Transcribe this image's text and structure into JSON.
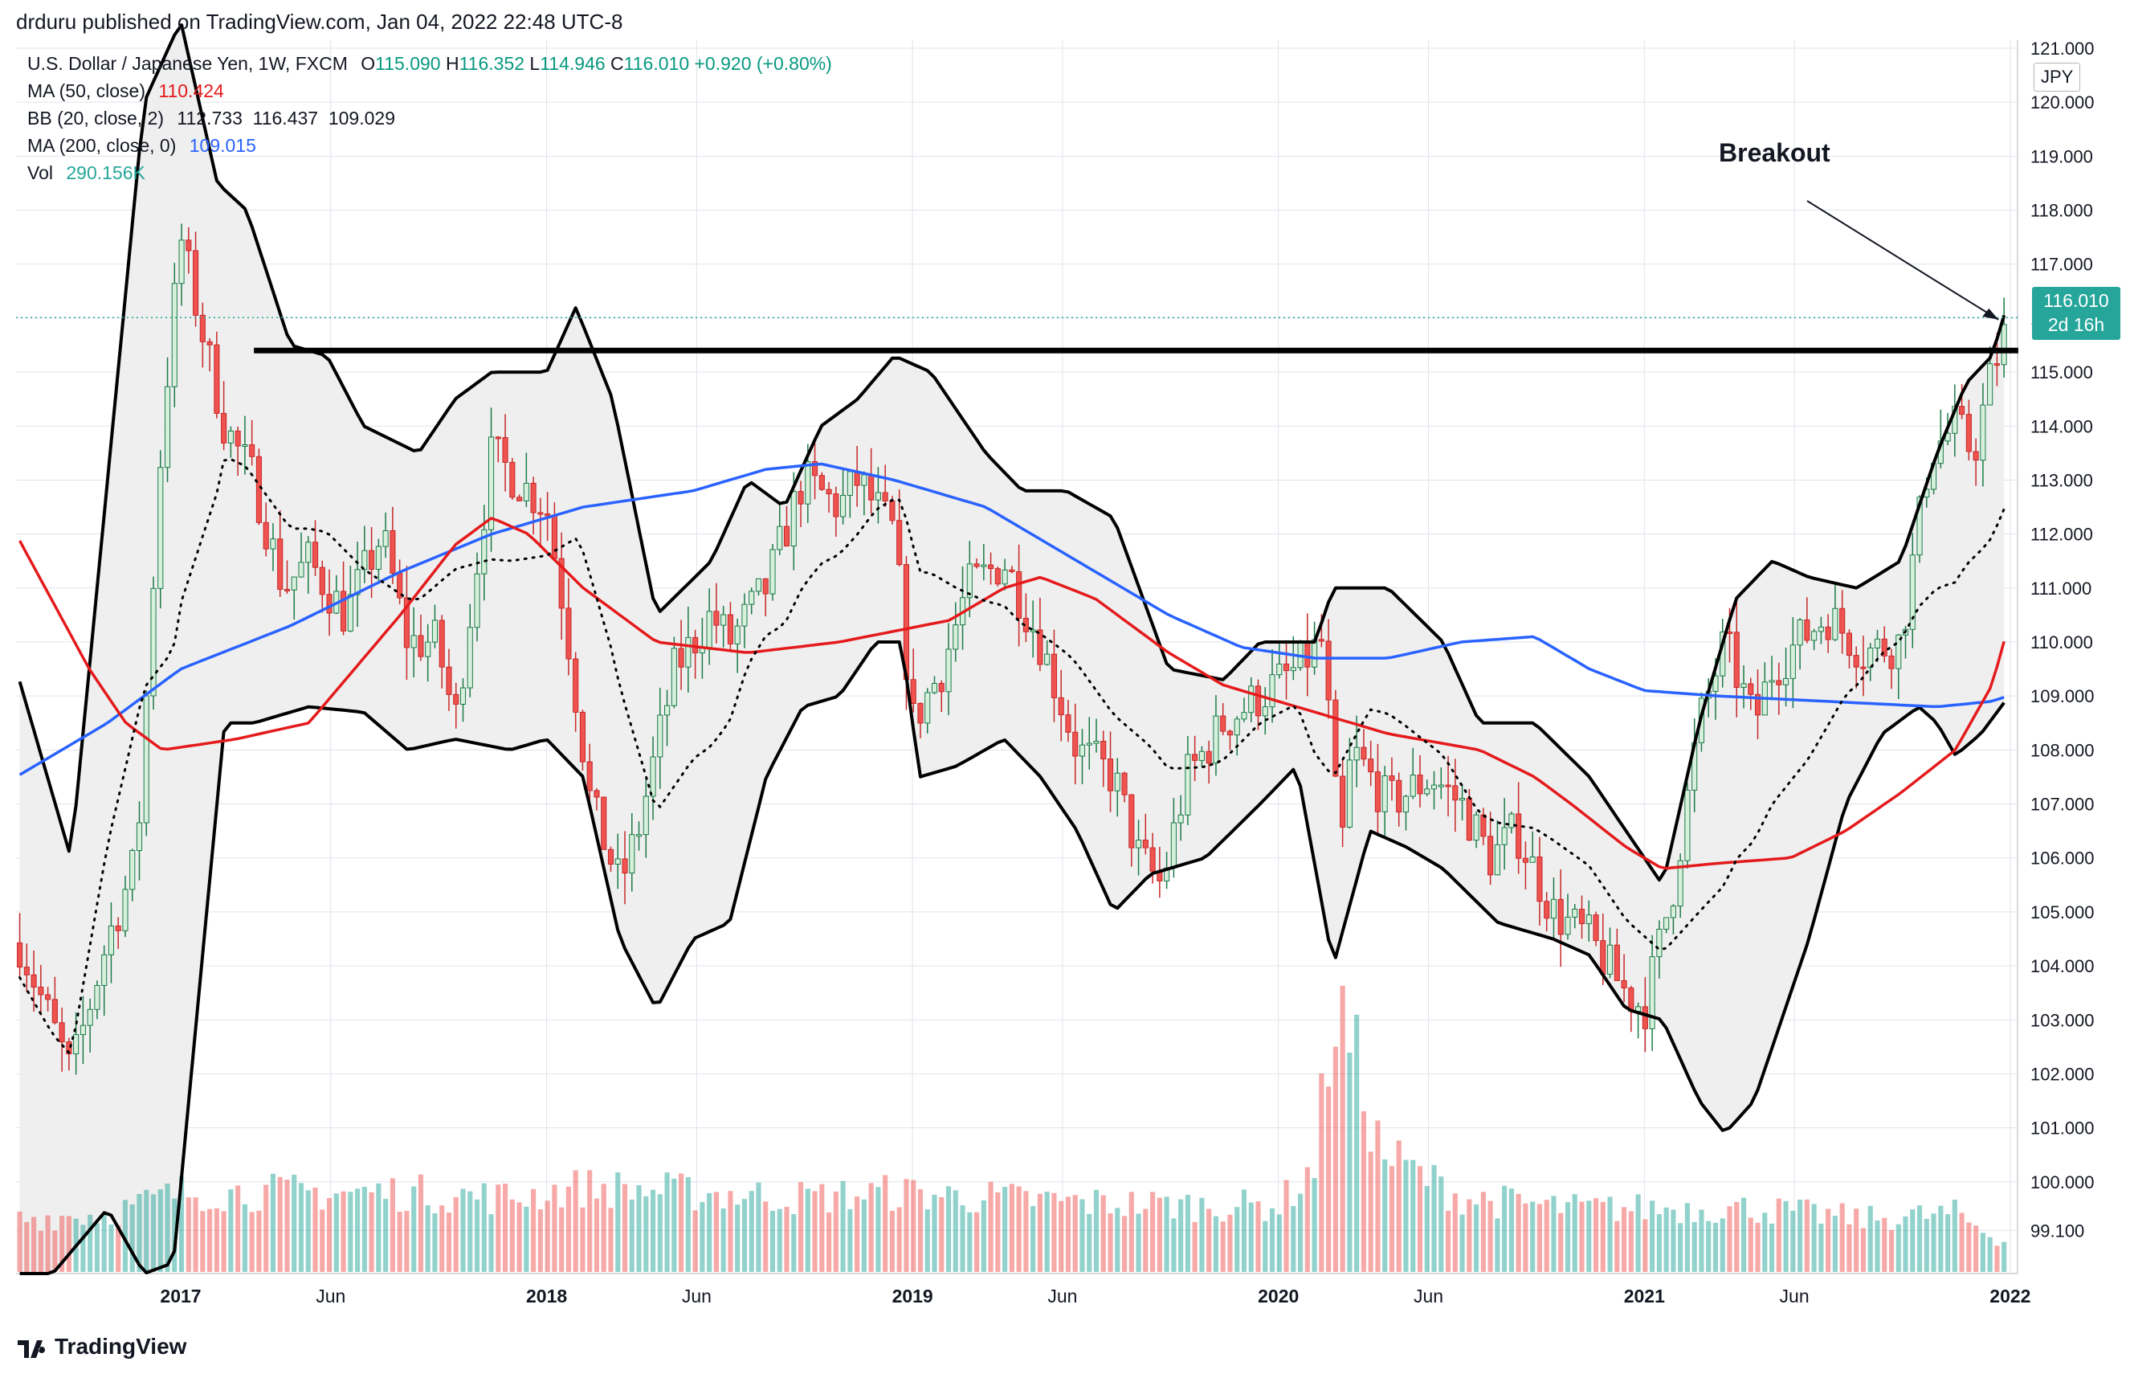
{
  "header": {
    "published": "drduru published on TradingView.com, Jan 04, 2022 22:48 UTC-8"
  },
  "legend": {
    "symbol": "U.S. Dollar / Japanese Yen, 1W, FXCM",
    "open_label": "O",
    "open": "115.090",
    "high_label": "H",
    "high": "116.352",
    "low_label": "L",
    "low": "114.946",
    "close_label": "C",
    "close": "116.010",
    "change": "+0.920 (+0.80%)",
    "ma50_label": "MA (50, close)",
    "ma50_value": "110.424",
    "bb_label": "BB (20, close, 2)",
    "bb_values": "112.733  116.437  109.029",
    "ma200_label": "MA (200, close, 0)",
    "ma200_value": "109.015",
    "vol_label": "Vol",
    "vol_value": "290.156K"
  },
  "currency": "JPY",
  "price_badge": {
    "price": "116.010",
    "countdown": "2d 16h"
  },
  "annotation": "Breakout",
  "brand": "TradingView",
  "colors": {
    "up": "#26a69a",
    "down": "#ef5350",
    "ma50": "#e41a1c",
    "ma200": "#2962ff",
    "bands": "#000000",
    "band_fill": "#eeeeee",
    "grid": "#e0e3eb",
    "resistance": "#000000"
  },
  "chart_data": {
    "type": "candlestick",
    "title": "U.S. Dollar / Japanese Yen, 1W, FXCM",
    "x_ticks": [
      "2017",
      "Jun",
      "2018",
      "Jun",
      "2019",
      "Jun",
      "2020",
      "Jun",
      "2021",
      "Jun",
      "2022"
    ],
    "y_ticks": [
      "121.000",
      "120.000",
      "119.000",
      "118.000",
      "117.000",
      "116.000",
      "115.000",
      "114.000",
      "113.000",
      "112.000",
      "111.000",
      "110.000",
      "109.000",
      "108.000",
      "107.000",
      "106.000",
      "105.000",
      "104.000",
      "103.000",
      "102.000",
      "101.000",
      "100.000",
      "99.100"
    ],
    "ylim": [
      98.3,
      121.0
    ],
    "resistance_level": 115.4,
    "last_price": 116.01,
    "anchors": {
      "close": [
        [
          2016.55,
          104.6
        ],
        [
          2016.7,
          102.0
        ],
        [
          2016.8,
          104.5
        ],
        [
          2016.88,
          106.0
        ],
        [
          2016.95,
          114.0
        ],
        [
          2017.0,
          117.5
        ],
        [
          2017.05,
          116.0
        ],
        [
          2017.12,
          114.0
        ],
        [
          2017.2,
          113.0
        ],
        [
          2017.28,
          111.0
        ],
        [
          2017.35,
          111.5
        ],
        [
          2017.45,
          110.5
        ],
        [
          2017.55,
          112.0
        ],
        [
          2017.62,
          110.0
        ],
        [
          2017.7,
          110.0
        ],
        [
          2017.75,
          108.5
        ],
        [
          2017.85,
          113.5
        ],
        [
          2017.92,
          113.0
        ],
        [
          2018.0,
          112.5
        ],
        [
          2018.05,
          110.5
        ],
        [
          2018.12,
          107.0
        ],
        [
          2018.2,
          105.5
        ],
        [
          2018.25,
          106.5
        ],
        [
          2018.35,
          109.5
        ],
        [
          2018.45,
          110.5
        ],
        [
          2018.5,
          110.0
        ],
        [
          2018.6,
          111.0
        ],
        [
          2018.7,
          113.0
        ],
        [
          2018.8,
          112.5
        ],
        [
          2018.85,
          113.0
        ],
        [
          2018.95,
          112.0
        ],
        [
          2019.0,
          108.5
        ],
        [
          2019.08,
          109.5
        ],
        [
          2019.15,
          111.0
        ],
        [
          2019.25,
          111.5
        ],
        [
          2019.35,
          110.0
        ],
        [
          2019.45,
          108.0
        ],
        [
          2019.55,
          107.5
        ],
        [
          2019.62,
          106.0
        ],
        [
          2019.68,
          105.5
        ],
        [
          2019.75,
          107.5
        ],
        [
          2019.85,
          108.5
        ],
        [
          2019.95,
          109.0
        ],
        [
          2020.05,
          109.5
        ],
        [
          2020.12,
          110.0
        ],
        [
          2020.17,
          106.0
        ],
        [
          2020.2,
          108.0
        ],
        [
          2020.25,
          107.5
        ],
        [
          2020.3,
          107.0
        ],
        [
          2020.42,
          107.5
        ],
        [
          2020.5,
          107.0
        ],
        [
          2020.58,
          106.0
        ],
        [
          2020.65,
          106.5
        ],
        [
          2020.75,
          105.0
        ],
        [
          2020.85,
          104.5
        ],
        [
          2020.95,
          103.5
        ],
        [
          2021.0,
          103.2
        ],
        [
          2021.08,
          105.5
        ],
        [
          2021.15,
          108.5
        ],
        [
          2021.22,
          110.0
        ],
        [
          2021.3,
          108.5
        ],
        [
          2021.35,
          109.5
        ],
        [
          2021.42,
          110.0
        ],
        [
          2021.5,
          110.5
        ],
        [
          2021.6,
          109.8
        ],
        [
          2021.7,
          110.0
        ],
        [
          2021.78,
          113.5
        ],
        [
          2021.85,
          114.0
        ],
        [
          2021.9,
          113.5
        ],
        [
          2021.95,
          115.0
        ],
        [
          2022.0,
          116.01
        ]
      ],
      "ma50": [
        [
          2016.55,
          112.0
        ],
        [
          2016.75,
          109.5
        ],
        [
          2016.85,
          108.5
        ],
        [
          2016.95,
          108.0
        ],
        [
          2017.15,
          108.2
        ],
        [
          2017.35,
          108.5
        ],
        [
          2017.6,
          110.5
        ],
        [
          2017.75,
          111.8
        ],
        [
          2017.85,
          112.3
        ],
        [
          2017.95,
          112.0
        ],
        [
          2018.1,
          111.0
        ],
        [
          2018.3,
          110.0
        ],
        [
          2018.55,
          109.8
        ],
        [
          2018.8,
          110.0
        ],
        [
          2018.95,
          110.2
        ],
        [
          2019.1,
          110.4
        ],
        [
          2019.25,
          111.0
        ],
        [
          2019.35,
          111.2
        ],
        [
          2019.5,
          110.8
        ],
        [
          2019.7,
          109.8
        ],
        [
          2019.85,
          109.2
        ],
        [
          2020.05,
          108.8
        ],
        [
          2020.3,
          108.3
        ],
        [
          2020.55,
          108.0
        ],
        [
          2020.7,
          107.5
        ],
        [
          2020.8,
          107.0
        ],
        [
          2020.95,
          106.2
        ],
        [
          2021.05,
          105.8
        ],
        [
          2021.2,
          105.9
        ],
        [
          2021.4,
          106.0
        ],
        [
          2021.55,
          106.5
        ],
        [
          2021.7,
          107.2
        ],
        [
          2021.85,
          108.0
        ],
        [
          2021.95,
          109.2
        ],
        [
          2022.0,
          110.424
        ]
      ],
      "ma200": [
        [
          2016.55,
          107.5
        ],
        [
          2016.8,
          108.5
        ],
        [
          2017.0,
          109.5
        ],
        [
          2017.3,
          110.3
        ],
        [
          2017.6,
          111.3
        ],
        [
          2017.85,
          112.0
        ],
        [
          2018.1,
          112.5
        ],
        [
          2018.4,
          112.8
        ],
        [
          2018.6,
          113.2
        ],
        [
          2018.75,
          113.3
        ],
        [
          2018.95,
          113.0
        ],
        [
          2019.2,
          112.5
        ],
        [
          2019.45,
          111.5
        ],
        [
          2019.7,
          110.5
        ],
        [
          2019.9,
          109.9
        ],
        [
          2020.1,
          109.7
        ],
        [
          2020.3,
          109.7
        ],
        [
          2020.5,
          110.0
        ],
        [
          2020.7,
          110.1
        ],
        [
          2020.85,
          109.5
        ],
        [
          2021.0,
          109.1
        ],
        [
          2021.2,
          109.0
        ],
        [
          2021.5,
          108.9
        ],
        [
          2021.8,
          108.8
        ],
        [
          2021.95,
          108.9
        ],
        [
          2022.0,
          109.015
        ]
      ],
      "bb_upper": [
        [
          2016.55,
          109.5
        ],
        [
          2016.7,
          106.0
        ],
        [
          2016.8,
          113.0
        ],
        [
          2016.9,
          120.0
        ],
        [
          2017.0,
          121.5
        ],
        [
          2017.1,
          118.5
        ],
        [
          2017.18,
          118.0
        ],
        [
          2017.3,
          115.5
        ],
        [
          2017.4,
          115.3
        ],
        [
          2017.5,
          114.0
        ],
        [
          2017.65,
          113.5
        ],
        [
          2017.75,
          114.5
        ],
        [
          2017.85,
          115.0
        ],
        [
          2018.0,
          115.0
        ],
        [
          2018.08,
          116.2
        ],
        [
          2018.18,
          114.5
        ],
        [
          2018.3,
          110.5
        ],
        [
          2018.45,
          111.5
        ],
        [
          2018.55,
          113.0
        ],
        [
          2018.65,
          112.5
        ],
        [
          2018.75,
          114.0
        ],
        [
          2018.85,
          114.5
        ],
        [
          2018.95,
          115.3
        ],
        [
          2019.05,
          115.0
        ],
        [
          2019.2,
          113.5
        ],
        [
          2019.3,
          112.8
        ],
        [
          2019.42,
          112.8
        ],
        [
          2019.55,
          112.3
        ],
        [
          2019.7,
          109.5
        ],
        [
          2019.85,
          109.3
        ],
        [
          2019.95,
          110.0
        ],
        [
          2020.1,
          110.0
        ],
        [
          2020.15,
          111.0
        ],
        [
          2020.3,
          111.0
        ],
        [
          2020.45,
          110.0
        ],
        [
          2020.55,
          108.5
        ],
        [
          2020.7,
          108.5
        ],
        [
          2020.85,
          107.5
        ],
        [
          2020.95,
          106.5
        ],
        [
          2021.05,
          105.5
        ],
        [
          2021.15,
          108.5
        ],
        [
          2021.25,
          110.8
        ],
        [
          2021.35,
          111.5
        ],
        [
          2021.45,
          111.2
        ],
        [
          2021.58,
          111.0
        ],
        [
          2021.7,
          111.5
        ],
        [
          2021.8,
          113.5
        ],
        [
          2021.88,
          114.8
        ],
        [
          2021.95,
          115.3
        ],
        [
          2022.0,
          116.437
        ]
      ],
      "bb_lower": [
        [
          2016.55,
          98.3
        ],
        [
          2016.65,
          98.3
        ],
        [
          2016.8,
          99.5
        ],
        [
          2016.9,
          98.3
        ],
        [
          2016.98,
          98.5
        ],
        [
          2017.05,
          103.5
        ],
        [
          2017.12,
          108.5
        ],
        [
          2017.2,
          108.5
        ],
        [
          2017.35,
          108.8
        ],
        [
          2017.5,
          108.7
        ],
        [
          2017.62,
          108.0
        ],
        [
          2017.75,
          108.2
        ],
        [
          2017.9,
          108.0
        ],
        [
          2018.0,
          108.2
        ],
        [
          2018.1,
          107.5
        ],
        [
          2018.2,
          104.5
        ],
        [
          2018.3,
          103.2
        ],
        [
          2018.4,
          104.5
        ],
        [
          2018.5,
          104.8
        ],
        [
          2018.6,
          107.5
        ],
        [
          2018.7,
          108.8
        ],
        [
          2018.8,
          109.0
        ],
        [
          2018.9,
          110.0
        ],
        [
          2018.97,
          110.0
        ],
        [
          2019.02,
          107.5
        ],
        [
          2019.12,
          107.7
        ],
        [
          2019.25,
          108.2
        ],
        [
          2019.35,
          107.5
        ],
        [
          2019.45,
          106.5
        ],
        [
          2019.55,
          105.0
        ],
        [
          2019.65,
          105.7
        ],
        [
          2019.8,
          106.0
        ],
        [
          2019.95,
          107.0
        ],
        [
          2020.05,
          107.7
        ],
        [
          2020.15,
          104.0
        ],
        [
          2020.25,
          106.5
        ],
        [
          2020.35,
          106.2
        ],
        [
          2020.45,
          105.8
        ],
        [
          2020.6,
          104.8
        ],
        [
          2020.75,
          104.5
        ],
        [
          2020.85,
          104.2
        ],
        [
          2020.95,
          103.2
        ],
        [
          2021.05,
          103.0
        ],
        [
          2021.15,
          101.5
        ],
        [
          2021.22,
          100.9
        ],
        [
          2021.3,
          101.5
        ],
        [
          2021.45,
          104.5
        ],
        [
          2021.55,
          107.0
        ],
        [
          2021.65,
          108.3
        ],
        [
          2021.75,
          108.8
        ],
        [
          2021.8,
          108.5
        ],
        [
          2021.85,
          107.9
        ],
        [
          2021.92,
          108.3
        ],
        [
          2022.0,
          109.029
        ]
      ],
      "volume": [
        [
          2016.55,
          0.2
        ],
        [
          2016.8,
          0.22
        ],
        [
          2017.0,
          0.3
        ],
        [
          2017.3,
          0.3
        ],
        [
          2017.6,
          0.3
        ],
        [
          2017.9,
          0.28
        ],
        [
          2018.1,
          0.32
        ],
        [
          2018.4,
          0.3
        ],
        [
          2018.7,
          0.28
        ],
        [
          2018.95,
          0.3
        ],
        [
          2019.2,
          0.28
        ],
        [
          2019.5,
          0.26
        ],
        [
          2019.8,
          0.25
        ],
        [
          2020.0,
          0.25
        ],
        [
          2020.1,
          0.4
        ],
        [
          2020.15,
          1.0
        ],
        [
          2020.2,
          0.85
        ],
        [
          2020.28,
          0.45
        ],
        [
          2020.5,
          0.28
        ],
        [
          2020.8,
          0.24
        ],
        [
          2021.0,
          0.24
        ],
        [
          2021.3,
          0.24
        ],
        [
          2021.6,
          0.2
        ],
        [
          2021.85,
          0.22
        ],
        [
          2022.0,
          0.1
        ]
      ]
    }
  }
}
